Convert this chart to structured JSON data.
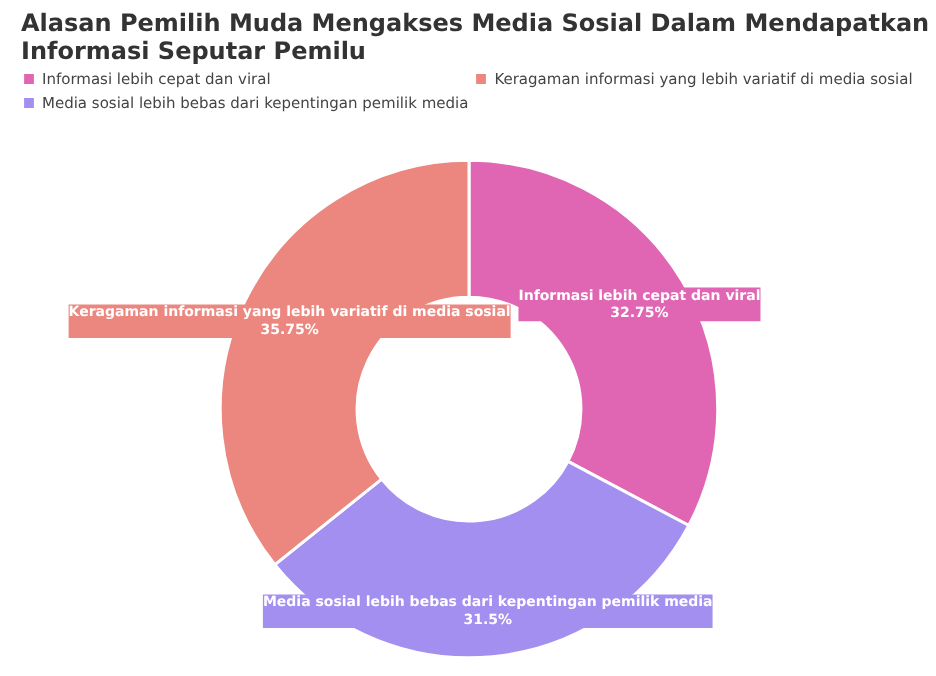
{
  "chart_data": {
    "type": "donut",
    "title": "Alasan Pemilih Muda Mengakses Media Sosial Dalam Mendapatkan Informasi Seputar Pemilu",
    "categories": [
      "Informasi lebih cepat dan viral",
      "Media sosial lebih bebas dari kepentingan pemilik media",
      "Keragaman informasi yang lebih variatif di media sosial"
    ],
    "values": [
      32.75,
      31.5,
      35.75
    ],
    "value_labels": [
      "32.75%",
      "31.5%",
      "35.75%"
    ],
    "colors": [
      "#e066b3",
      "#a28fef",
      "#ec8780"
    ],
    "legend": "top left"
  }
}
